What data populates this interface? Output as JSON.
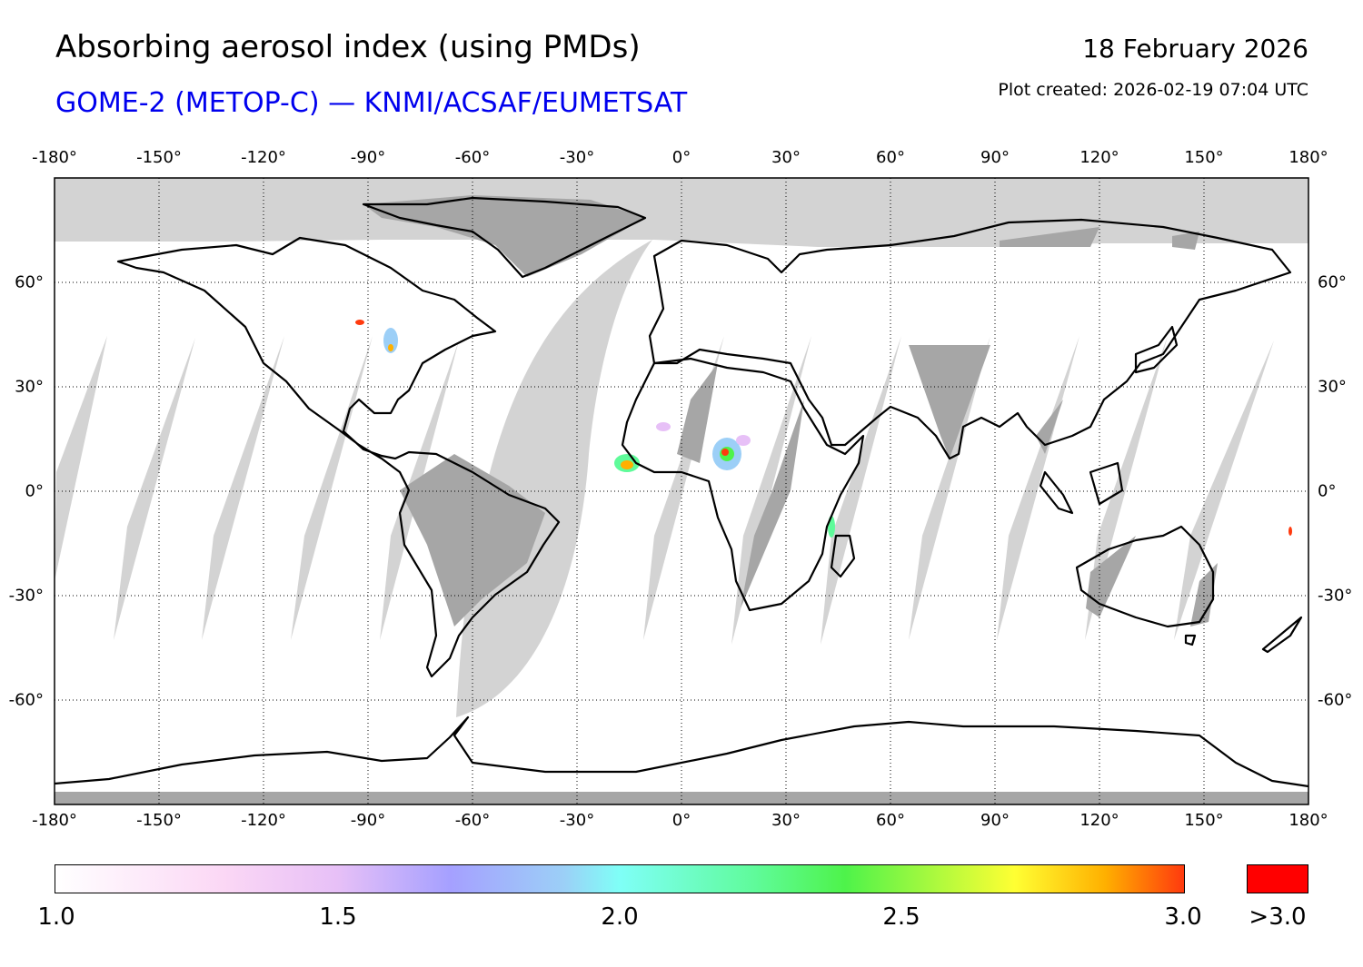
{
  "title": "Absorbing aerosol index (using PMDs)",
  "subtitle": "GOME-2 (METOP-C) — KNMI/ACSAF/EUMETSAT",
  "date": "18 February 2026",
  "plot_created": "Plot created: 2026-02-19 07:04 UTC",
  "map": {
    "lon_labels": [
      "-180°",
      "-150°",
      "-120°",
      "-90°",
      "-60°",
      "-30°",
      "0°",
      "30°",
      "60°",
      "90°",
      "120°",
      "150°",
      "180°"
    ],
    "lat_labels": [
      "60°",
      "30°",
      "0°",
      "-30°",
      "-60°"
    ],
    "lon_range": [
      -180,
      180
    ],
    "lat_range": [
      -90,
      90
    ],
    "colors": {
      "no_data": "#d3d3d3",
      "land_no_data": "#a6a6a6",
      "coast": "#000000",
      "grid": "#000000"
    }
  },
  "colorbar": {
    "ticks": [
      "1.0",
      "1.5",
      "2.0",
      "2.5",
      "3.0"
    ],
    "over_label": ">3.0",
    "over_color": "#ff0000",
    "range": [
      1.0,
      3.0
    ]
  }
}
